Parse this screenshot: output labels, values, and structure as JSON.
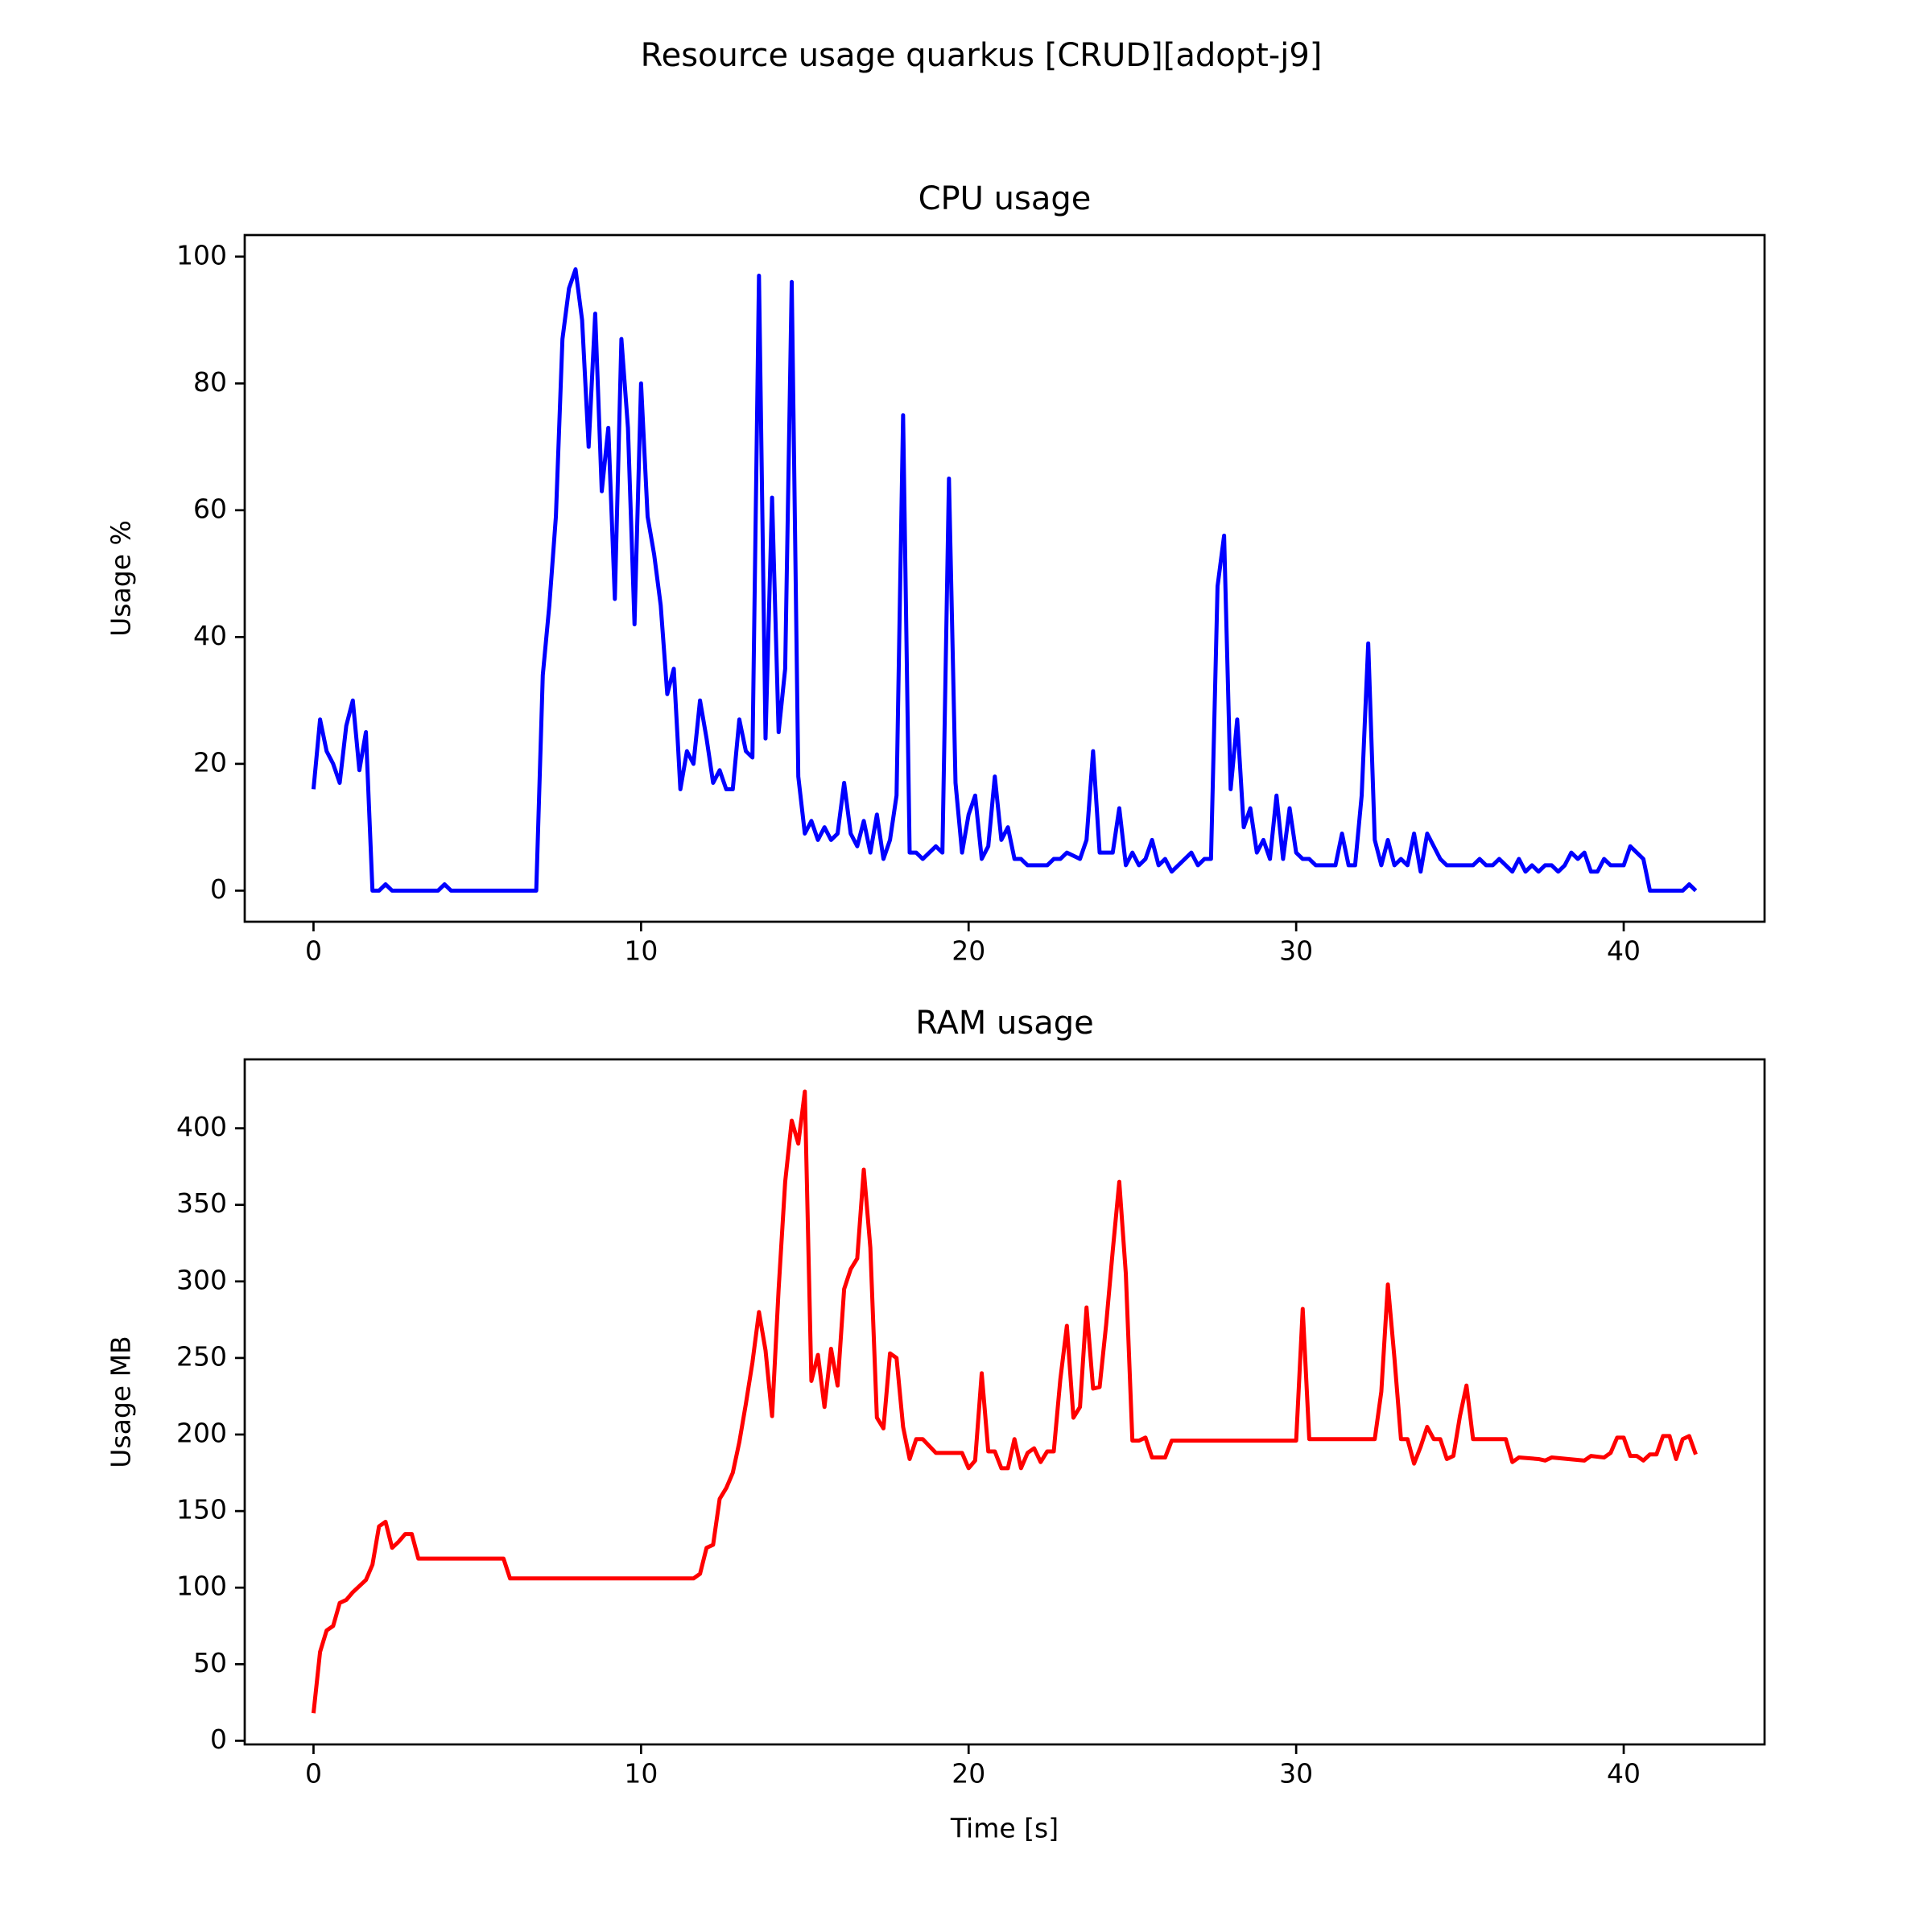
{
  "title": "Resource usage quarkus [CRUD][adopt-j9]",
  "chart_data": [
    {
      "type": "line",
      "title": "CPU usage",
      "ylabel": "Usage %",
      "color": "#0000ff",
      "xlim": [
        -2.1,
        44.3
      ],
      "ylim": [
        -4.9,
        103.4
      ],
      "xticks": [
        0,
        10,
        20,
        30,
        40
      ],
      "yticks": [
        0,
        20,
        40,
        60,
        80,
        100
      ],
      "x": [
        0,
        0.2,
        0.4,
        0.6,
        0.8,
        1.0,
        1.2,
        1.4,
        1.6,
        1.8,
        2.0,
        2.2,
        2.4,
        3.8,
        4.0,
        4.2,
        6.8,
        7.0,
        7.2,
        7.4,
        7.6,
        7.8,
        8.0,
        8.2,
        8.4,
        8.6,
        8.8,
        9.0,
        9.2,
        9.4,
        9.6,
        9.8,
        10.0,
        10.2,
        10.4,
        10.6,
        10.8,
        11.0,
        11.2,
        11.4,
        11.6,
        11.8,
        12.0,
        12.2,
        12.4,
        12.6,
        12.8,
        13.0,
        13.2,
        13.4,
        13.6,
        13.8,
        14.0,
        14.2,
        14.4,
        14.6,
        14.8,
        15.0,
        15.2,
        15.4,
        15.6,
        15.8,
        16.0,
        16.2,
        16.4,
        16.6,
        16.8,
        17.0,
        17.2,
        17.4,
        17.6,
        17.8,
        18.0,
        18.2,
        18.4,
        18.6,
        18.8,
        19.0,
        19.2,
        19.4,
        19.6,
        19.8,
        20.0,
        20.2,
        20.4,
        20.6,
        20.8,
        21.0,
        21.2,
        21.4,
        21.6,
        21.8,
        22.4,
        22.6,
        22.8,
        23.0,
        23.4,
        23.6,
        23.8,
        24.0,
        24.4,
        24.6,
        24.8,
        25.0,
        25.2,
        25.4,
        25.6,
        25.8,
        26.0,
        26.2,
        26.6,
        26.8,
        27.0,
        27.2,
        27.4,
        27.6,
        27.8,
        28.0,
        28.2,
        28.4,
        28.6,
        28.8,
        29.0,
        29.2,
        29.4,
        29.6,
        29.8,
        30.0,
        30.2,
        30.4,
        30.6,
        31.2,
        31.4,
        31.6,
        31.8,
        32.0,
        32.2,
        32.4,
        32.6,
        32.8,
        33.0,
        33.2,
        33.4,
        33.6,
        33.8,
        34.0,
        34.2,
        34.4,
        34.6,
        35.4,
        35.6,
        35.8,
        36.0,
        36.2,
        36.4,
        36.6,
        36.8,
        37.0,
        37.2,
        37.4,
        37.6,
        37.8,
        38.0,
        38.2,
        38.4,
        38.6,
        38.8,
        39.0,
        39.2,
        39.4,
        39.6,
        40.0,
        40.2,
        40.4,
        40.6,
        40.8,
        41.8,
        42.0,
        42.2
      ],
      "values": [
        16,
        27,
        22,
        20,
        17,
        26,
        30,
        19,
        25,
        0,
        0,
        1,
        0,
        0,
        1,
        0,
        0,
        34,
        45,
        59,
        87,
        95,
        98,
        90,
        70,
        91,
        63,
        73,
        46,
        87,
        73,
        42,
        80,
        59,
        53,
        45,
        31,
        35,
        16,
        22,
        20,
        30,
        24,
        17,
        19,
        16,
        16,
        27,
        22,
        21,
        97,
        24,
        62,
        25,
        35,
        96,
        18,
        9,
        11,
        8,
        10,
        8,
        9,
        17,
        9,
        7,
        11,
        6,
        12,
        5,
        8,
        15,
        75,
        6,
        6,
        5,
        6,
        7,
        6,
        65,
        17,
        6,
        12,
        15,
        5,
        7,
        18,
        8,
        10,
        5,
        5,
        4,
        4,
        5,
        5,
        6,
        5,
        8,
        22,
        6,
        6,
        13,
        4,
        6,
        4,
        5,
        8,
        4,
        5,
        3,
        5,
        6,
        4,
        5,
        5,
        48,
        56,
        16,
        27,
        10,
        13,
        6,
        8,
        5,
        15,
        5,
        13,
        6,
        5,
        5,
        4,
        4,
        9,
        4,
        4,
        15,
        39,
        8,
        4,
        8,
        4,
        5,
        4,
        9,
        3,
        9,
        7,
        5,
        4,
        4,
        5,
        4,
        4,
        5,
        4,
        3,
        5,
        3,
        4,
        3,
        4,
        4,
        3,
        4,
        6,
        5,
        6,
        3,
        3,
        5,
        4,
        4,
        7,
        6,
        5,
        0,
        0,
        1,
        0
      ]
    },
    {
      "type": "line",
      "title": "RAM usage",
      "ylabel": "Usage MB",
      "xlabel": "Time [s]",
      "color": "#ff0000",
      "xlim": [
        -2.1,
        44.3
      ],
      "ylim": [
        -2.4,
        445
      ],
      "xticks": [
        0,
        10,
        20,
        30,
        40
      ],
      "yticks": [
        0,
        50,
        100,
        150,
        200,
        250,
        300,
        350,
        400
      ],
      "x": [
        0,
        0.2,
        0.4,
        0.6,
        0.8,
        1.0,
        1.2,
        1.4,
        1.6,
        1.8,
        2.0,
        2.2,
        2.4,
        2.6,
        2.8,
        3.0,
        3.2,
        5.8,
        6.0,
        11.6,
        11.8,
        12.0,
        12.2,
        12.4,
        12.6,
        12.8,
        13.0,
        13.2,
        13.4,
        13.6,
        13.8,
        14.0,
        14.2,
        14.4,
        14.6,
        14.8,
        15.0,
        15.2,
        15.4,
        15.6,
        15.8,
        16.0,
        16.2,
        16.4,
        16.6,
        16.8,
        17.0,
        17.2,
        17.4,
        17.6,
        17.8,
        18.0,
        18.2,
        18.4,
        18.6,
        19.0,
        19.8,
        20.0,
        20.2,
        20.4,
        20.6,
        20.8,
        21.0,
        21.2,
        21.4,
        21.6,
        21.8,
        22.0,
        22.2,
        22.4,
        22.6,
        22.8,
        23.0,
        23.2,
        23.4,
        23.6,
        23.8,
        24.0,
        24.2,
        24.4,
        24.6,
        24.8,
        25.0,
        25.2,
        25.4,
        25.6,
        26.0,
        26.2,
        30.0,
        30.2,
        30.4,
        32.4,
        32.6,
        32.8,
        33.0,
        33.2,
        33.4,
        33.6,
        33.8,
        34.0,
        34.2,
        34.4,
        34.6,
        34.8,
        35.0,
        35.2,
        35.4,
        36.4,
        36.6,
        36.8,
        37.4,
        37.6,
        37.8,
        38.8,
        39.0,
        39.4,
        39.6,
        39.8,
        40.0,
        40.2,
        40.4,
        40.6,
        40.8,
        41.0,
        41.2,
        41.4,
        41.6,
        41.8,
        42.0,
        42.2
      ],
      "values": [
        18,
        58,
        72,
        75,
        90,
        92,
        97,
        101,
        105,
        115,
        140,
        143,
        126,
        130,
        135,
        135,
        119,
        119,
        106,
        106,
        109,
        126,
        128,
        158,
        165,
        175,
        195,
        220,
        247,
        280,
        255,
        212,
        295,
        365,
        405,
        390,
        424,
        235,
        252,
        218,
        256,
        232,
        295,
        308,
        315,
        373,
        322,
        211,
        204,
        253,
        250,
        205,
        184,
        197,
        197,
        188,
        188,
        178,
        183,
        240,
        189,
        189,
        178,
        178,
        197,
        178,
        188,
        191,
        182,
        189,
        189,
        236,
        271,
        211,
        218,
        283,
        230,
        231,
        272,
        320,
        365,
        305,
        196,
        196,
        198,
        185,
        185,
        196,
        196,
        282,
        197,
        197,
        228,
        298,
        250,
        197,
        197,
        181,
        192,
        205,
        197,
        197,
        184,
        186,
        212,
        232,
        197,
        197,
        182,
        185,
        184,
        183,
        185,
        183,
        186,
        185,
        188,
        198,
        198,
        186,
        186,
        183,
        187,
        187,
        199,
        199,
        184,
        197,
        199,
        187
      ]
    }
  ]
}
